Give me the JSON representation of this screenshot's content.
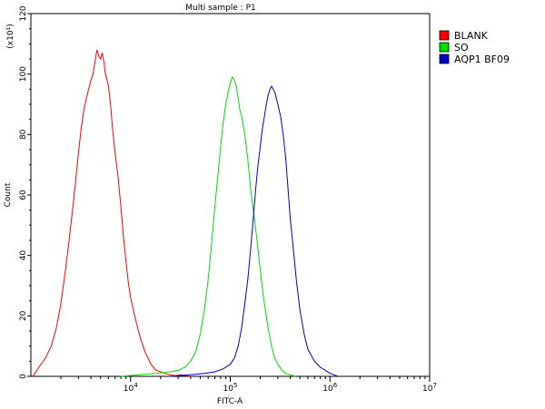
{
  "chart_data": {
    "type": "line",
    "title": "Multi sample : P1",
    "xlabel": "FITC-A",
    "ylabel": "Count",
    "y_multiplier_label": "(x10¹)",
    "x_scale": "log",
    "xlim": [
      1000,
      10000000
    ],
    "ylim": [
      0,
      120
    ],
    "x_tick_labels": [
      {
        "value": 10000,
        "base": "10",
        "exp": "4"
      },
      {
        "value": 100000,
        "base": "10",
        "exp": "5"
      },
      {
        "value": 1000000,
        "base": "10",
        "exp": "6"
      },
      {
        "value": 10000000,
        "base": "10",
        "exp": "7"
      }
    ],
    "y_ticks": [
      0,
      20,
      40,
      60,
      80,
      100,
      120
    ],
    "y_tick_labels": [
      "0",
      "20",
      "40",
      "60",
      "80",
      "100",
      "120"
    ],
    "grid": false,
    "legend_position": "right",
    "series": [
      {
        "name": "BLANK",
        "color": "#ff0000",
        "x": [
          1050,
          1200,
          1400,
          1600,
          1800,
          2000,
          2200,
          2400,
          2600,
          2800,
          3000,
          3200,
          3400,
          3600,
          3800,
          4000,
          4200,
          4400,
          4600,
          4800,
          5000,
          5200,
          5400,
          5600,
          5800,
          6000,
          6300,
          6600,
          7000,
          7500,
          8000,
          8500,
          9000,
          9500,
          10000,
          11000,
          12000,
          13000,
          14000,
          15000,
          16000,
          17000,
          18000,
          20000,
          22000,
          25000,
          28000,
          32000,
          40000
        ],
        "y": [
          0,
          3,
          6,
          10,
          16,
          24,
          34,
          44,
          54,
          64,
          74,
          82,
          88,
          92,
          95,
          98,
          100,
          104,
          108,
          106,
          105,
          107,
          104,
          100,
          98,
          96,
          90,
          82,
          74,
          66,
          56,
          46,
          38,
          31,
          26,
          20,
          15,
          11,
          8,
          6,
          4,
          3,
          2,
          1.5,
          1,
          0.5,
          0.2,
          0.5,
          0
        ]
      },
      {
        "name": "SO",
        "color": "#00dd00",
        "x": [
          8000,
          12000,
          18000,
          25000,
          30000,
          35000,
          40000,
          45000,
          50000,
          55000,
          60000,
          65000,
          70000,
          75000,
          80000,
          85000,
          90000,
          95000,
          100000,
          105000,
          110000,
          115000,
          120000,
          125000,
          130000,
          140000,
          150000,
          160000,
          175000,
          190000,
          205000,
          220000,
          240000,
          260000,
          280000,
          300000,
          330000,
          360000,
          400000,
          450000
        ],
        "y": [
          0,
          0.5,
          1,
          1.5,
          2,
          3,
          5,
          8,
          14,
          22,
          32,
          44,
          56,
          66,
          76,
          84,
          90,
          94,
          97,
          99,
          98,
          96,
          92,
          88,
          86,
          80,
          72,
          62,
          52,
          42,
          32,
          24,
          16,
          10,
          6,
          4,
          2,
          1,
          0.5,
          0
        ]
      },
      {
        "name": "AQP1 BF09",
        "color": "#0000cc",
        "x": [
          25000,
          40000,
          55000,
          70000,
          85000,
          100000,
          110000,
          120000,
          130000,
          140000,
          150000,
          160000,
          170000,
          180000,
          190000,
          200000,
          210000,
          220000,
          230000,
          240000,
          250000,
          260000,
          280000,
          300000,
          320000,
          340000,
          360000,
          380000,
          400000,
          430000,
          460000,
          500000,
          550000,
          600000,
          700000,
          800000,
          900000,
          1000000,
          1100000,
          1200000
        ],
        "y": [
          0,
          0.5,
          1,
          1.5,
          2.5,
          4,
          6,
          10,
          16,
          24,
          32,
          42,
          52,
          62,
          70,
          76,
          82,
          86,
          90,
          93,
          95,
          96,
          94,
          90,
          86,
          80,
          72,
          62,
          52,
          42,
          32,
          22,
          14,
          9,
          5,
          3,
          2,
          1,
          0.5,
          0
        ]
      }
    ]
  }
}
